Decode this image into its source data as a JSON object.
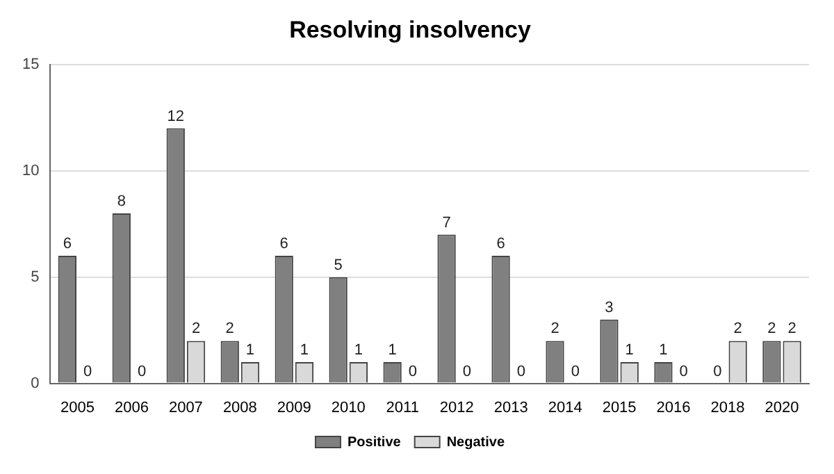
{
  "chart_data": {
    "type": "bar",
    "title": "Resolving insolvency",
    "categories": [
      "2005",
      "2006",
      "2007",
      "2008",
      "2009",
      "2010",
      "2011",
      "2012",
      "2013",
      "2014",
      "2015",
      "2016",
      "2018",
      "2020"
    ],
    "series": [
      {
        "name": "Positive",
        "color": "#808080",
        "values": [
          6,
          8,
          12,
          2,
          6,
          5,
          1,
          7,
          6,
          2,
          3,
          1,
          0,
          2
        ]
      },
      {
        "name": "Negative",
        "color": "#d9d9d9",
        "values": [
          0,
          0,
          2,
          1,
          1,
          1,
          0,
          0,
          0,
          0,
          1,
          0,
          2,
          2
        ]
      }
    ],
    "ylim": [
      0,
      15
    ],
    "yticks": [
      0,
      5,
      10,
      15
    ],
    "grid": "y",
    "legend": "bottom",
    "data_labels": true
  }
}
